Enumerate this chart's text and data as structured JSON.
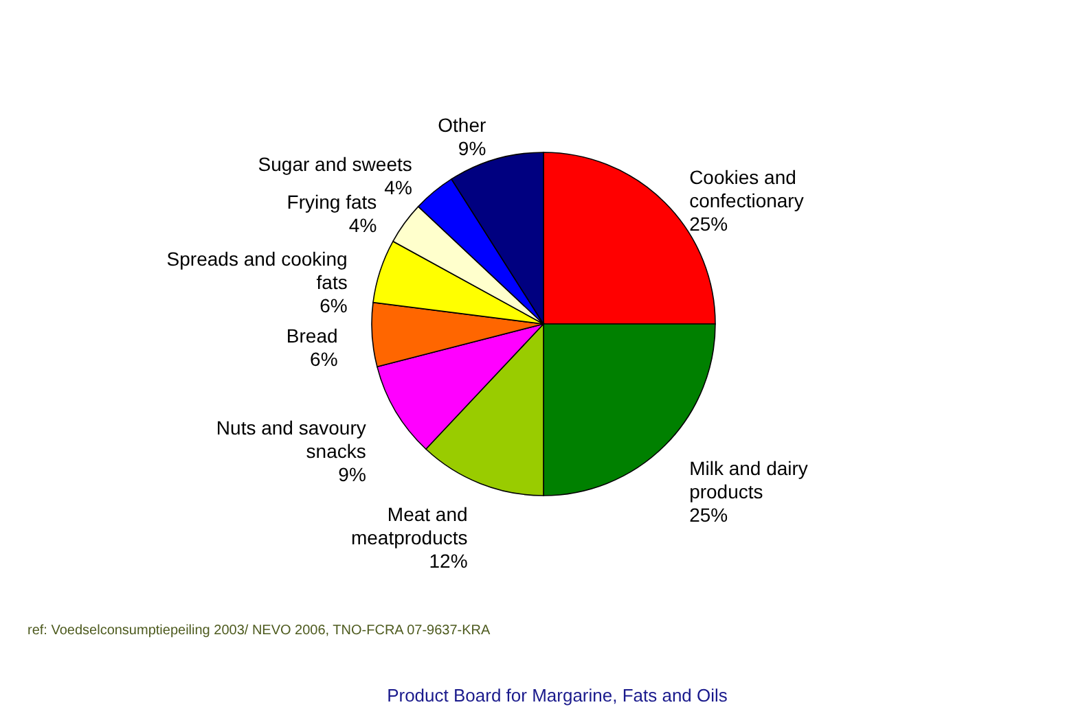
{
  "chart_data": {
    "type": "pie",
    "categories": [
      "Cookies and confectionary",
      "Milk and dairy products",
      "Meat and meatproducts",
      "Nuts and savoury snacks",
      "Bread",
      "Spreads and cooking fats",
      "Frying fats",
      "Sugar and sweets",
      "Other"
    ],
    "values": [
      25,
      25,
      12,
      9,
      6,
      6,
      4,
      4,
      9
    ],
    "colors": [
      "#ff0000",
      "#008000",
      "#99cc00",
      "#ff00ff",
      "#ff6600",
      "#ffff00",
      "#ffffcc",
      "#0000ff",
      "#000080"
    ],
    "value_labels": [
      "25%",
      "25%",
      "12%",
      "9%",
      "6%",
      "6%",
      "4%",
      "4%",
      "9%"
    ],
    "data_labels": true,
    "annotations": [
      "ref: Voedselconsumptiepeiling 2003/ NEVO 2006, TNO-FCRA 07-9637-KRA",
      "Product Board for Margarine, Fats and Oils"
    ]
  }
}
